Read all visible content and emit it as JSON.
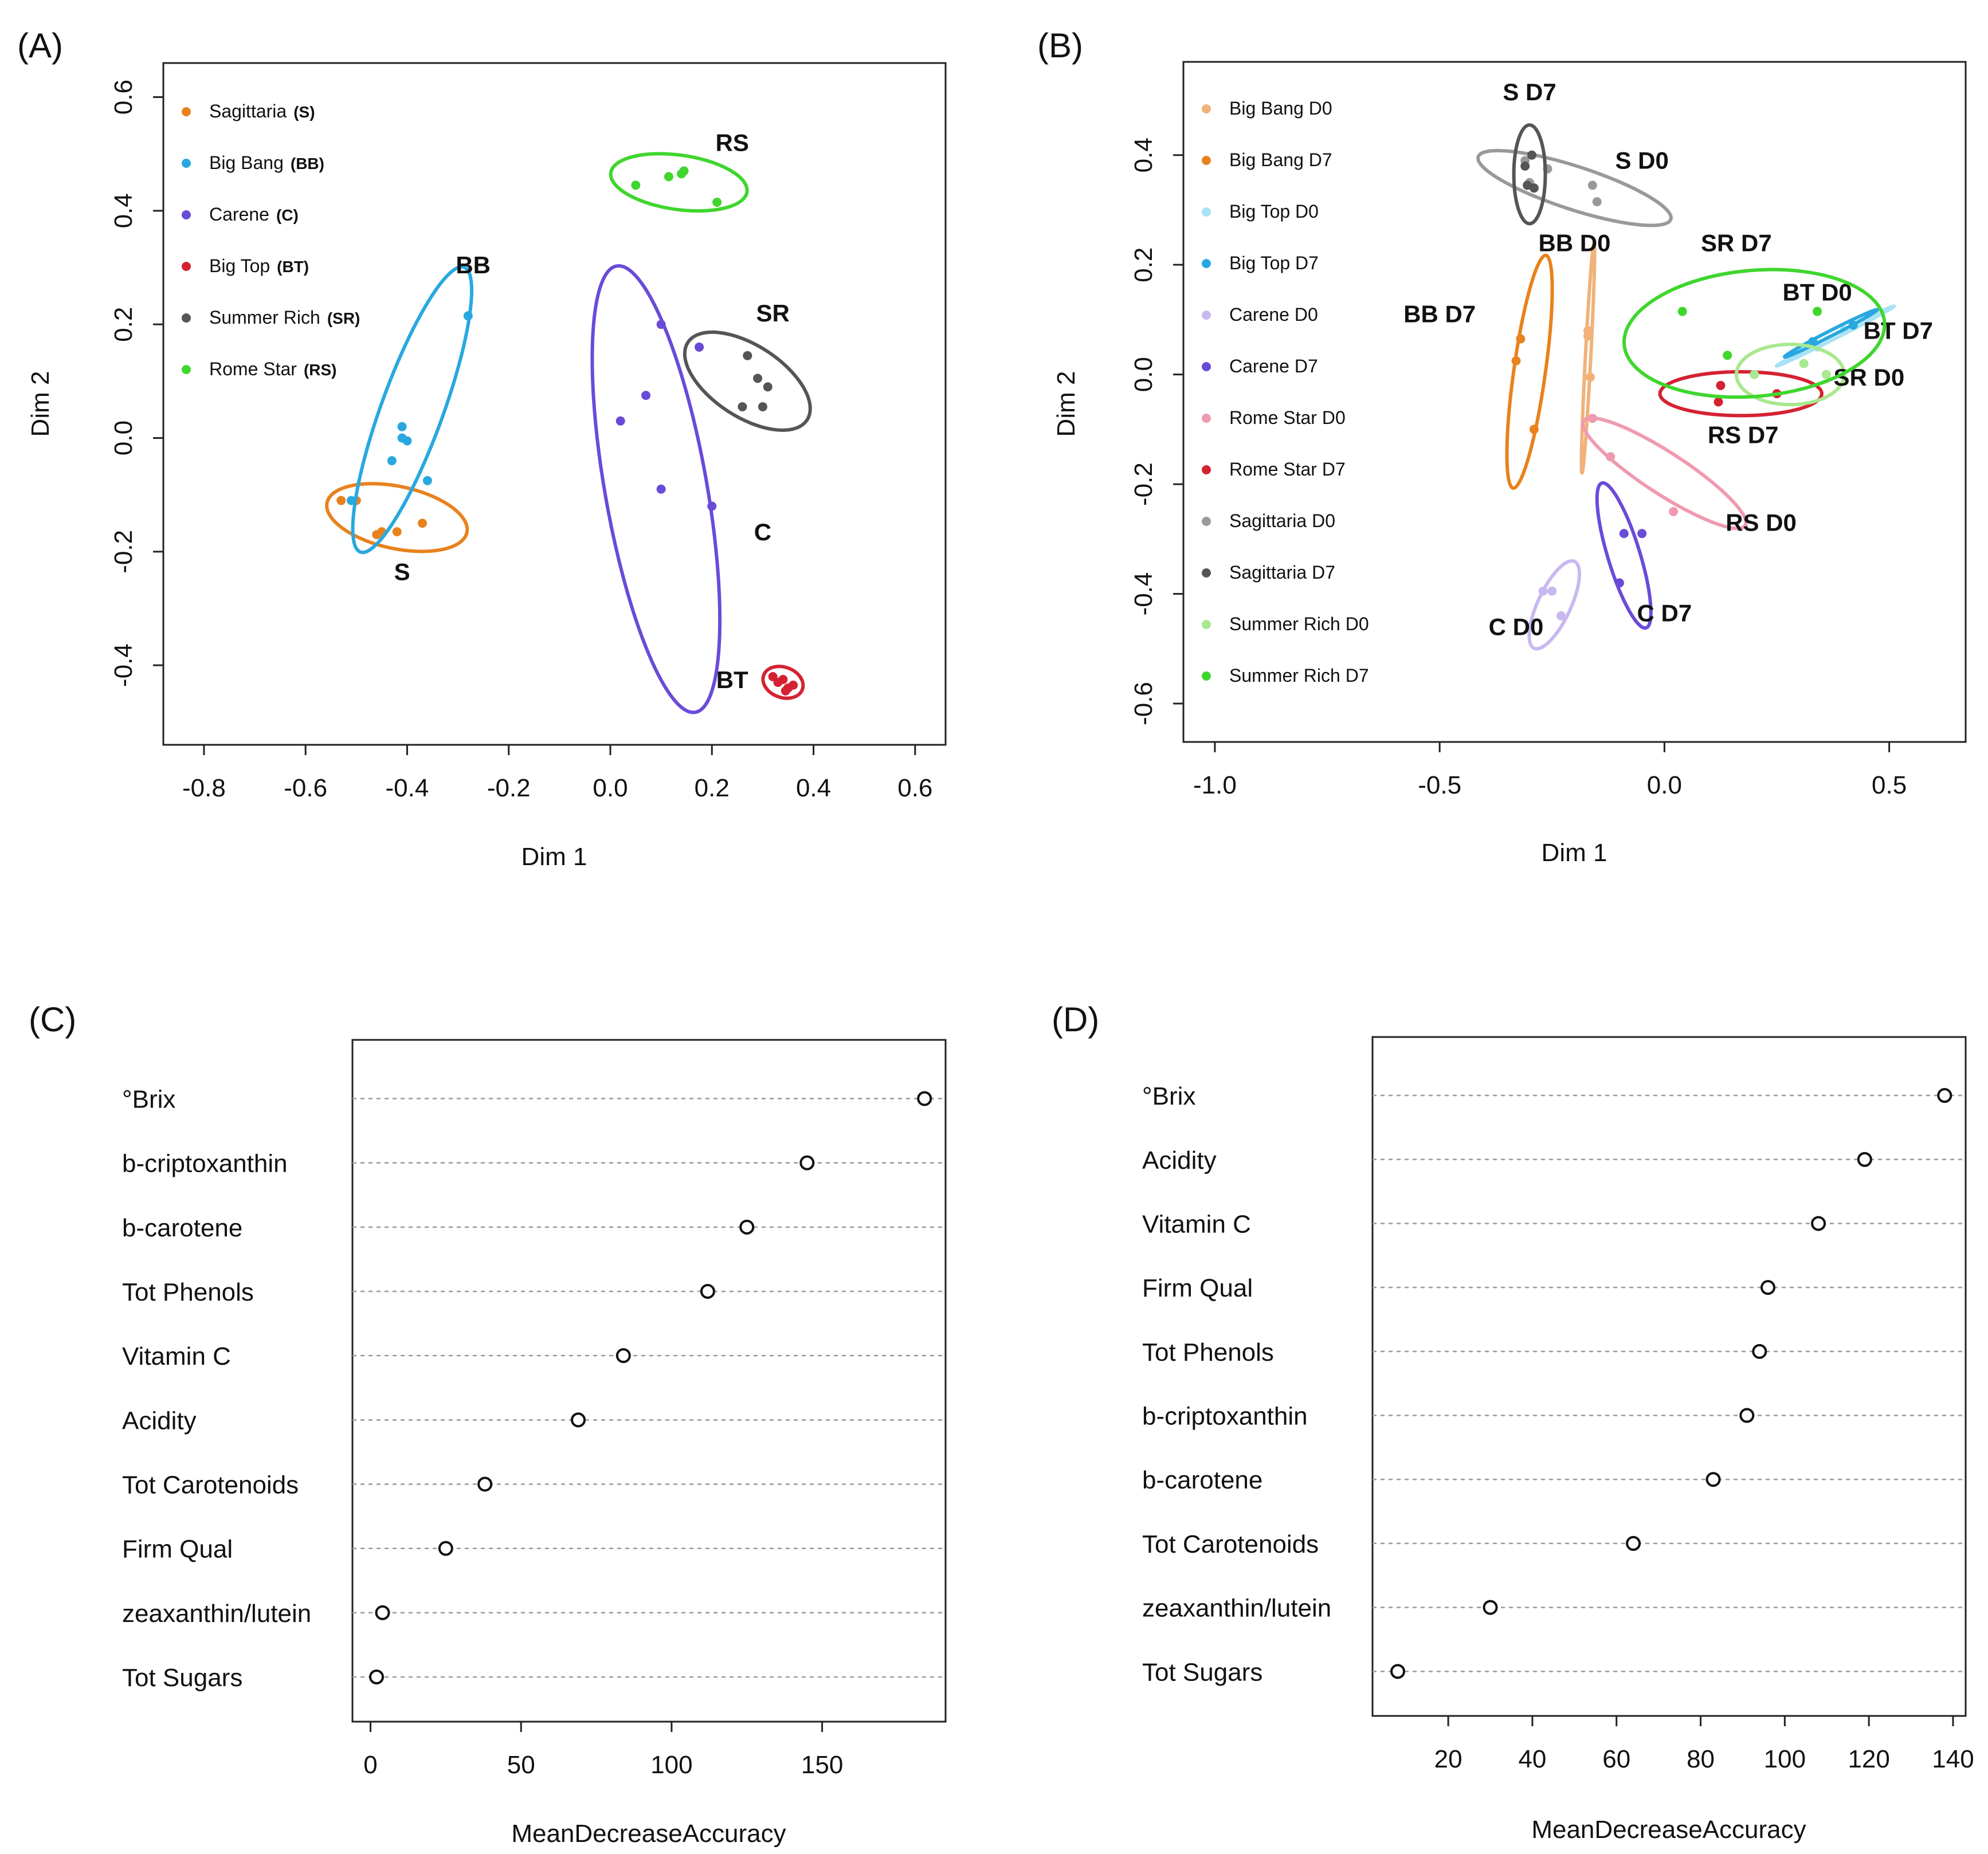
{
  "panels": {
    "a": "(A)",
    "b": "(B)",
    "c": "(C)",
    "d": "(D)"
  },
  "chart_data": [
    {
      "id": "A",
      "type": "scatter",
      "xlabel": "Dim 1",
      "ylabel": "Dim 2",
      "xlim": [
        -0.88,
        0.66
      ],
      "ylim": [
        -0.54,
        0.66
      ],
      "xticks": [
        "-0.8",
        "-0.6",
        "-0.4",
        "-0.2",
        "0.0",
        "0.2",
        "0.4",
        "0.6"
      ],
      "xtick_values": [
        -0.8,
        -0.6,
        -0.4,
        -0.2,
        0.0,
        0.2,
        0.4,
        0.6
      ],
      "yticks": [
        "-0.4",
        "-0.2",
        "0.0",
        "0.2",
        "0.4",
        "0.6"
      ],
      "ytick_values": [
        -0.4,
        -0.2,
        0.0,
        0.2,
        0.4,
        0.6
      ],
      "legend": {
        "placement": "top-left",
        "entries": [
          {
            "label": "Sagittaria",
            "abbr": "(S)",
            "color": "#E8821E"
          },
          {
            "label": "Big Bang",
            "abbr": "(BB)",
            "color": "#29A8E0"
          },
          {
            "label": "Carene",
            "abbr": "(C)",
            "color": "#6A4BD8"
          },
          {
            "label": "Big Top",
            "abbr": "(BT)",
            "color": "#D42232"
          },
          {
            "label": "Summer Rich",
            "abbr": "(SR)",
            "color": "#555555"
          },
          {
            "label": "Rome Star",
            "abbr": "(RS)",
            "color": "#3FD62E"
          }
        ]
      },
      "series": [
        {
          "name": "Sagittaria (S)",
          "color": "#E8821E",
          "label": "S",
          "label_at": [
            -0.41,
            -0.25
          ],
          "ellipse": {
            "cx": -0.42,
            "cy": -0.14,
            "rx": 0.14,
            "ry": 0.055,
            "angle": -12
          },
          "points": [
            [
              -0.53,
              -0.11
            ],
            [
              -0.46,
              -0.17
            ],
            [
              -0.45,
              -0.165
            ],
            [
              -0.42,
              -0.165
            ],
            [
              -0.37,
              -0.15
            ],
            [
              -0.5,
              -0.11
            ]
          ]
        },
        {
          "name": "Big Bang (BB)",
          "color": "#29A8E0",
          "label": "BB",
          "label_at": [
            -0.27,
            0.29
          ],
          "ellipse": {
            "cx": -0.39,
            "cy": 0.05,
            "rx": 0.27,
            "ry": 0.06,
            "angle": 70
          },
          "points": [
            [
              -0.28,
              0.215
            ],
            [
              -0.41,
              0.02
            ],
            [
              -0.41,
              0.0
            ],
            [
              -0.4,
              -0.005
            ],
            [
              -0.43,
              -0.04
            ],
            [
              -0.36,
              -0.075
            ],
            [
              -0.51,
              -0.11
            ]
          ]
        },
        {
          "name": "Carene (C)",
          "color": "#6A4BD8",
          "label": "C",
          "label_at": [
            0.3,
            -0.18
          ],
          "ellipse": {
            "cx": 0.09,
            "cy": -0.09,
            "rx": 0.4,
            "ry": 0.1,
            "angle": -80
          },
          "points": [
            [
              0.1,
              0.2
            ],
            [
              0.175,
              0.16
            ],
            [
              0.07,
              0.075
            ],
            [
              0.02,
              0.03
            ],
            [
              0.1,
              -0.09
            ],
            [
              0.2,
              -0.12
            ]
          ]
        },
        {
          "name": "Big Top (BT)",
          "color": "#D42232",
          "label": "BT",
          "label_at": [
            0.24,
            -0.44
          ],
          "ellipse": {
            "cx": 0.34,
            "cy": -0.43,
            "rx": 0.04,
            "ry": 0.027,
            "angle": -20
          },
          "points": [
            [
              0.32,
              -0.42
            ],
            [
              0.34,
              -0.425
            ],
            [
              0.33,
              -0.43
            ],
            [
              0.35,
              -0.44
            ],
            [
              0.36,
              -0.435
            ],
            [
              0.345,
              -0.445
            ]
          ]
        },
        {
          "name": "Summer Rich (SR)",
          "color": "#555555",
          "label": "SR",
          "label_at": [
            0.32,
            0.205
          ],
          "ellipse": {
            "cx": 0.27,
            "cy": 0.1,
            "rx": 0.135,
            "ry": 0.065,
            "angle": -33
          },
          "points": [
            [
              0.27,
              0.145
            ],
            [
              0.29,
              0.105
            ],
            [
              0.31,
              0.09
            ],
            [
              0.26,
              0.055
            ],
            [
              0.3,
              0.055
            ]
          ]
        },
        {
          "name": "Rome Star (RS)",
          "color": "#3FD62E",
          "label": "RS",
          "label_at": [
            0.24,
            0.505
          ],
          "ellipse": {
            "cx": 0.135,
            "cy": 0.45,
            "rx": 0.135,
            "ry": 0.048,
            "angle": -8
          },
          "points": [
            [
              0.05,
              0.445
            ],
            [
              0.115,
              0.46
            ],
            [
              0.14,
              0.465
            ],
            [
              0.145,
              0.47
            ],
            [
              0.21,
              0.415
            ]
          ]
        }
      ]
    },
    {
      "id": "B",
      "type": "scatter",
      "xlabel": "Dim 1",
      "ylabel": "Dim 2",
      "xlim": [
        -1.07,
        0.67
      ],
      "ylim": [
        -0.67,
        0.57
      ],
      "xticks": [
        "-1.0",
        "-0.5",
        "0.0",
        "0.5"
      ],
      "xtick_values": [
        -1.0,
        -0.5,
        0.0,
        0.5
      ],
      "yticks": [
        "-0.6",
        "-0.4",
        "-0.2",
        "0.0",
        "0.2",
        "0.4"
      ],
      "ytick_values": [
        -0.6,
        -0.4,
        -0.2,
        0.0,
        0.2,
        0.4
      ],
      "legend": {
        "placement": "top-left",
        "entries": [
          {
            "label": "Big Bang D0",
            "color": "#F0B27A"
          },
          {
            "label": "Big Bang D7",
            "color": "#E8821E"
          },
          {
            "label": "Big Top D0",
            "color": "#A8E2F5"
          },
          {
            "label": "Big Top D7",
            "color": "#29A8E0"
          },
          {
            "label": "Carene D0",
            "color": "#C9B8F0"
          },
          {
            "label": "Carene D7",
            "color": "#6A4BD8"
          },
          {
            "label": "Rome Star D0",
            "color": "#F09AB0"
          },
          {
            "label": "Rome Star D7",
            "color": "#D42232"
          },
          {
            "label": "Sagittaria D0",
            "color": "#999999"
          },
          {
            "label": "Sagittaria D7",
            "color": "#555555"
          },
          {
            "label": "Summer Rich D0",
            "color": "#A8E890"
          },
          {
            "label": "Summer Rich D7",
            "color": "#3FD62E"
          }
        ]
      },
      "series": [
        {
          "name": "Big Bang D0",
          "color": "#F0B27A",
          "label": "BB D0",
          "label_at": [
            -0.2,
            0.225
          ],
          "ellipse": {
            "cx": -0.17,
            "cy": 0.03,
            "rx": 0.21,
            "ry": 0.006,
            "angle": 87
          },
          "points": [
            [
              -0.17,
              0.07
            ],
            [
              -0.165,
              -0.005
            ],
            [
              -0.17,
              0.08
            ]
          ]
        },
        {
          "name": "Big Bang D7",
          "color": "#E8821E",
          "label": "BB D7",
          "label_at": [
            -0.5,
            0.095
          ],
          "ellipse": {
            "cx": -0.3,
            "cy": 0.005,
            "rx": 0.215,
            "ry": 0.035,
            "angle": 82
          },
          "points": [
            [
              -0.32,
              0.065
            ],
            [
              -0.33,
              0.025
            ],
            [
              -0.29,
              -0.1
            ]
          ]
        },
        {
          "name": "Big Top D0",
          "color": "#A8E2F5",
          "label": "BT D0",
          "label_at": [
            0.34,
            0.135
          ],
          "ellipse": {
            "cx": 0.38,
            "cy": 0.07,
            "rx": 0.14,
            "ry": 0.004,
            "angle": 27
          },
          "points": [
            [
              0.34,
              0.05
            ],
            [
              0.4,
              0.08
            ]
          ]
        },
        {
          "name": "Big Top D7",
          "color": "#29A8E0",
          "label": "BT D7",
          "label_at": [
            0.52,
            0.065
          ],
          "ellipse": {
            "cx": 0.37,
            "cy": 0.075,
            "rx": 0.11,
            "ry": 0.005,
            "angle": 27
          },
          "points": [
            [
              0.33,
              0.06
            ],
            [
              0.42,
              0.09
            ]
          ]
        },
        {
          "name": "Carene D0",
          "color": "#C9B8F0",
          "label": "C D0",
          "label_at": [
            -0.33,
            -0.475
          ],
          "ellipse": {
            "cx": -0.245,
            "cy": -0.42,
            "rx": 0.09,
            "ry": 0.035,
            "angle": 65
          },
          "points": [
            [
              -0.27,
              -0.395
            ],
            [
              -0.25,
              -0.395
            ],
            [
              -0.23,
              -0.44
            ]
          ]
        },
        {
          "name": "Carene D7",
          "color": "#6A4BD8",
          "label": "C D7",
          "label_at": [
            0.0,
            -0.45
          ],
          "ellipse": {
            "cx": -0.09,
            "cy": -0.33,
            "rx": 0.14,
            "ry": 0.035,
            "angle": -73
          },
          "points": [
            [
              -0.09,
              -0.29
            ],
            [
              -0.05,
              -0.29
            ],
            [
              -0.1,
              -0.38
            ]
          ]
        },
        {
          "name": "Rome Star D0",
          "color": "#F09AB0",
          "label": "RS D0",
          "label_at": [
            0.215,
            -0.285
          ],
          "ellipse": {
            "cx": 0.0,
            "cy": -0.18,
            "rx": 0.2,
            "ry": 0.04,
            "angle": -33
          },
          "points": [
            [
              -0.16,
              -0.08
            ],
            [
              -0.12,
              -0.15
            ],
            [
              0.02,
              -0.25
            ]
          ]
        },
        {
          "name": "Rome Star D7",
          "color": "#D42232",
          "label": "RS D7",
          "label_at": [
            0.175,
            -0.125
          ],
          "ellipse": {
            "cx": 0.17,
            "cy": -0.035,
            "rx": 0.18,
            "ry": 0.04,
            "angle": 0
          },
          "points": [
            [
              0.12,
              -0.05
            ],
            [
              0.25,
              -0.035
            ],
            [
              0.125,
              -0.02
            ]
          ]
        },
        {
          "name": "Sagittaria D0",
          "color": "#999999",
          "label": "S D0",
          "label_at": [
            -0.05,
            0.375
          ],
          "ellipse": {
            "cx": -0.2,
            "cy": 0.34,
            "rx": 0.22,
            "ry": 0.04,
            "angle": -18
          },
          "points": [
            [
              -0.26,
              0.375
            ],
            [
              -0.16,
              0.345
            ],
            [
              -0.15,
              0.315
            ],
            [
              -0.31,
              0.39
            ],
            [
              -0.3,
              0.35
            ]
          ]
        },
        {
          "name": "Sagittaria D7",
          "color": "#555555",
          "label": "S D7",
          "label_at": [
            -0.3,
            0.5
          ],
          "ellipse": {
            "cx": -0.3,
            "cy": 0.365,
            "rx": 0.09,
            "ry": 0.035,
            "angle": 90
          },
          "points": [
            [
              -0.31,
              0.38
            ],
            [
              -0.295,
              0.4
            ],
            [
              -0.305,
              0.345
            ],
            [
              -0.29,
              0.34
            ]
          ]
        },
        {
          "name": "Summer Rich D0",
          "color": "#A8E890",
          "label": "SR D0",
          "label_at": [
            0.455,
            -0.02
          ],
          "ellipse": {
            "cx": 0.28,
            "cy": 0.0,
            "rx": 0.12,
            "ry": 0.055,
            "angle": 0
          },
          "points": [
            [
              0.2,
              0.0
            ],
            [
              0.31,
              0.02
            ],
            [
              0.36,
              0.0
            ]
          ]
        },
        {
          "name": "Summer Rich D7",
          "color": "#3FD62E",
          "label": "SR D7",
          "label_at": [
            0.16,
            0.225
          ],
          "ellipse": {
            "cx": 0.2,
            "cy": 0.075,
            "rx": 0.29,
            "ry": 0.115,
            "angle": 5
          },
          "points": [
            [
              0.04,
              0.115
            ],
            [
              0.14,
              0.035
            ],
            [
              0.34,
              0.115
            ]
          ]
        }
      ]
    },
    {
      "id": "C",
      "type": "dot",
      "xlabel": "MeanDecreaseAccuracy",
      "xlim": [
        -6,
        191
      ],
      "xticks": [
        "0",
        "50",
        "100",
        "150"
      ],
      "xtick_values": [
        0,
        50,
        100,
        150
      ],
      "categories": [
        "°Brix",
        "b-criptoxanthin",
        "b-carotene",
        "Tot Phenols",
        "Vitamin C",
        "Acidity",
        "Tot Carotenoids",
        "Firm Qual",
        "zeaxanthin/lutein",
        "Tot Sugars"
      ],
      "values": [
        184,
        145,
        125,
        112,
        84,
        69,
        38,
        25,
        4,
        2
      ]
    },
    {
      "id": "D",
      "type": "dot",
      "xlabel": "MeanDecreaseAccuracy",
      "xlim": [
        2,
        143
      ],
      "xticks": [
        "20",
        "40",
        "60",
        "80",
        "100",
        "120",
        "140"
      ],
      "xtick_values": [
        20,
        40,
        60,
        80,
        100,
        120,
        140
      ],
      "categories": [
        "°Brix",
        "Acidity",
        "Vitamin C",
        "Firm Qual",
        "Tot Phenols",
        "b-criptoxanthin",
        "b-carotene",
        "Tot Carotenoids",
        "zeaxanthin/lutein",
        "Tot Sugars"
      ],
      "values": [
        138,
        119,
        108,
        96,
        94,
        91,
        83,
        64,
        30,
        8
      ]
    }
  ]
}
